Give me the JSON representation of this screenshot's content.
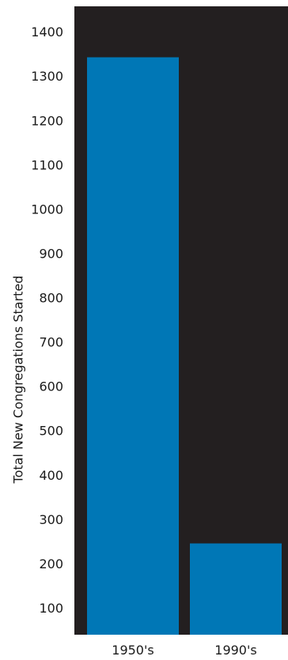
{
  "chart_data": {
    "type": "bar",
    "title": "",
    "xlabel": "",
    "ylabel": "Total New Congregations Started",
    "categories": [
      "1950's",
      "1990's"
    ],
    "values": [
      1345,
      248
    ],
    "y_ticks": [
      100,
      200,
      300,
      400,
      500,
      600,
      700,
      800,
      900,
      1000,
      1100,
      1200,
      1300,
      1400
    ],
    "ylim": [
      42,
      1460
    ],
    "grid": false,
    "legend": "none"
  },
  "colors": {
    "plot_background": "#231f20",
    "bar": "#0077b6",
    "text": "#1a1a1a"
  }
}
